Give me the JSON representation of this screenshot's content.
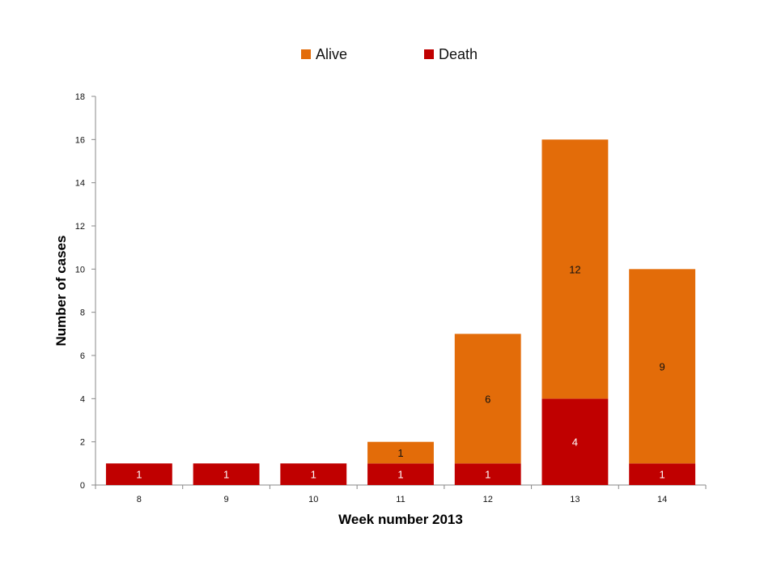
{
  "chart_data": {
    "type": "bar",
    "stacked": true,
    "title": "",
    "xlabel": "Week number 2013",
    "ylabel": "Number of cases",
    "categories": [
      "8",
      "9",
      "10",
      "11",
      "12",
      "13",
      "14"
    ],
    "ylim": [
      0,
      18
    ],
    "yticks": [
      "0",
      "2",
      "4",
      "6",
      "8",
      "10",
      "12",
      "14",
      "16",
      "18"
    ],
    "grid": false,
    "legend_position": "top-center",
    "series": [
      {
        "name": "Death",
        "color": "#c00000",
        "label_color": "#ffffff",
        "values": [
          1,
          1,
          1,
          1,
          1,
          4,
          1
        ],
        "labels": [
          "1",
          "1",
          "1",
          "1",
          "1",
          "4",
          "1"
        ]
      },
      {
        "name": "Alive",
        "color": "#e36c09",
        "label_color": "#111111",
        "values": [
          0,
          0,
          0,
          1,
          6,
          12,
          9
        ],
        "labels": [
          "",
          "",
          "",
          "1",
          "6",
          "12",
          "9"
        ]
      }
    ],
    "legend_order": [
      "Alive",
      "Death"
    ]
  }
}
